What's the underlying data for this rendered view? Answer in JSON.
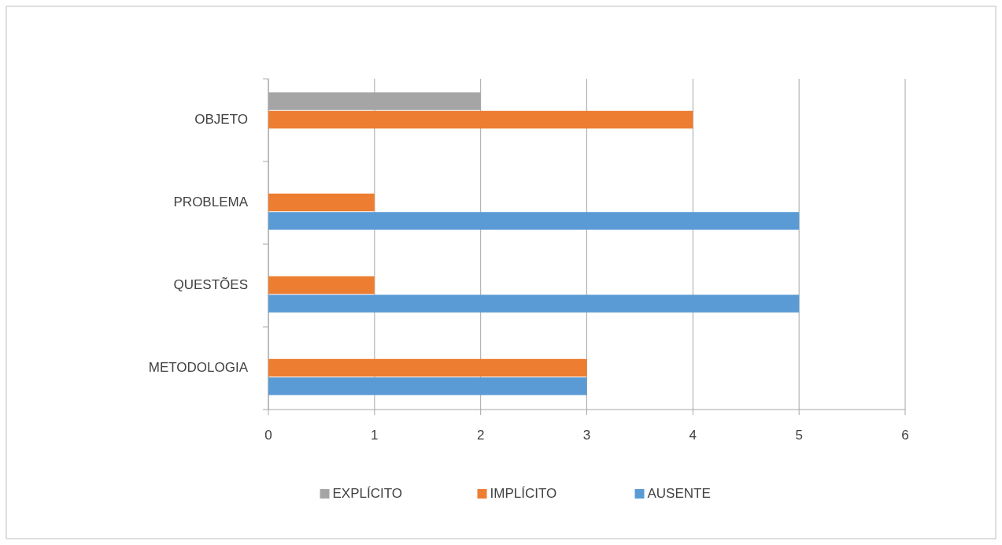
{
  "chart_data": {
    "type": "bar",
    "orientation": "horizontal",
    "categories": [
      "OBJETO",
      "PROBLEMA",
      "QUESTÕES",
      "METODOLOGIA"
    ],
    "series": [
      {
        "name": "EXPLÍCITO",
        "color": "#a5a5a5",
        "values": [
          2,
          null,
          null,
          null
        ]
      },
      {
        "name": "IMPLÍCITO",
        "color": "#ed7d31",
        "values": [
          4,
          1,
          1,
          3
        ]
      },
      {
        "name": "AUSENTE",
        "color": "#5b9bd5",
        "values": [
          null,
          5,
          5,
          3
        ]
      }
    ],
    "xlim": [
      0,
      6
    ],
    "xticks": [
      0,
      1,
      2,
      3,
      4,
      5,
      6
    ],
    "grid": "x",
    "legend": "bottom"
  }
}
